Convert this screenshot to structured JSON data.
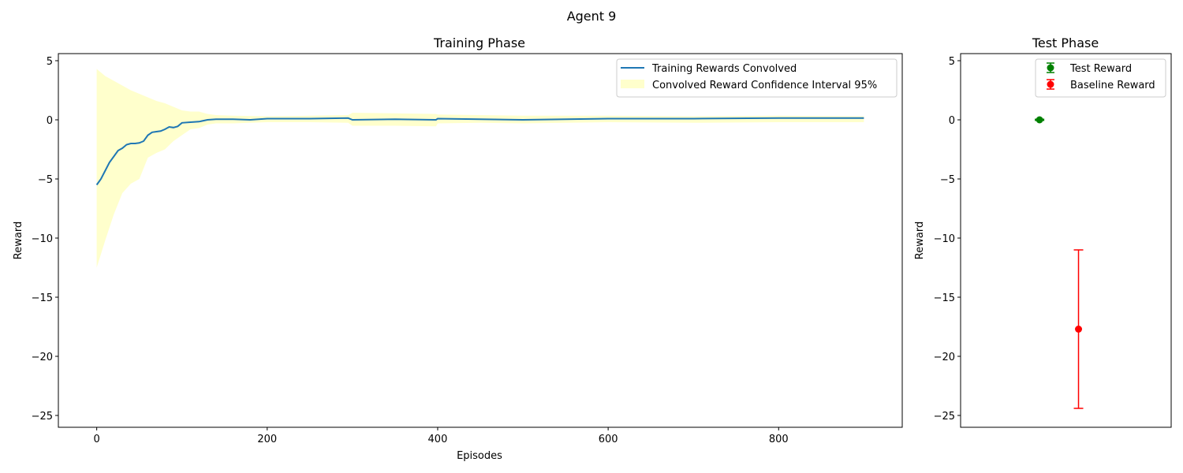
{
  "figure_title": "Agent 9",
  "chart_data": [
    {
      "type": "line",
      "title": "Training Phase",
      "xlabel": "Episodes",
      "ylabel": "Reward",
      "xlim": [
        -45,
        945
      ],
      "ylim": [
        -26,
        5.6
      ],
      "xticks": [
        "0",
        "200",
        "400",
        "600",
        "800"
      ],
      "yticks": [
        "5",
        "0",
        "−5",
        "−10",
        "−15",
        "−20",
        "−25"
      ],
      "legend_position": "upper right",
      "grid": false,
      "series": [
        {
          "name": "Training Rewards Convolved",
          "color": "#1f77b4",
          "x": [
            0,
            5,
            10,
            15,
            20,
            25,
            30,
            35,
            40,
            45,
            50,
            55,
            60,
            65,
            70,
            75,
            80,
            85,
            90,
            95,
            100,
            110,
            120,
            130,
            140,
            160,
            180,
            200,
            250,
            295,
            300,
            350,
            398,
            400,
            450,
            500,
            550,
            600,
            700,
            800,
            900
          ],
          "y": [
            -5.5,
            -5.0,
            -4.3,
            -3.6,
            -3.1,
            -2.6,
            -2.4,
            -2.1,
            -2.0,
            -2.0,
            -1.95,
            -1.8,
            -1.3,
            -1.05,
            -1.0,
            -0.95,
            -0.8,
            -0.6,
            -0.65,
            -0.55,
            -0.25,
            -0.2,
            -0.15,
            0.0,
            0.05,
            0.05,
            0.0,
            0.1,
            0.1,
            0.15,
            0.0,
            0.05,
            0.0,
            0.1,
            0.05,
            0.0,
            0.05,
            0.1,
            0.1,
            0.15,
            0.15
          ]
        },
        {
          "name": "Convolved Reward Confidence Interval 95%",
          "type": "band",
          "color": "#ffffcc",
          "x": [
            0,
            10,
            20,
            30,
            40,
            50,
            60,
            70,
            80,
            90,
            100,
            110,
            120,
            130,
            140,
            160,
            200,
            250,
            295,
            300,
            350,
            398,
            400,
            450,
            500,
            600,
            700,
            800,
            900
          ],
          "upper": [
            4.3,
            3.7,
            3.3,
            2.9,
            2.5,
            2.2,
            1.9,
            1.6,
            1.4,
            1.1,
            0.8,
            0.7,
            0.7,
            0.5,
            0.4,
            0.35,
            0.3,
            0.35,
            0.4,
            0.6,
            0.55,
            0.5,
            0.45,
            0.4,
            0.35,
            0.35,
            0.3,
            0.35,
            0.3
          ],
          "lower": [
            -12.5,
            -10.2,
            -8.0,
            -6.2,
            -5.4,
            -5.0,
            -3.2,
            -2.8,
            -2.5,
            -1.8,
            -1.3,
            -0.8,
            -0.7,
            -0.4,
            -0.3,
            -0.3,
            -0.2,
            -0.2,
            -0.25,
            -0.5,
            -0.5,
            -0.55,
            -0.3,
            -0.25,
            -0.3,
            -0.2,
            -0.25,
            -0.2,
            -0.2
          ]
        }
      ]
    },
    {
      "type": "scatter",
      "title": "Test Phase",
      "ylabel": "Reward",
      "xlim": [
        -0.5,
        1.5
      ],
      "ylim": [
        -26,
        5.6
      ],
      "yticks": [
        "5",
        "0",
        "−5",
        "−10",
        "−15",
        "−20",
        "−25"
      ],
      "legend_position": "upper right",
      "series": [
        {
          "name": "Test Reward",
          "color": "#008000",
          "x": 0.25,
          "y": 0.0,
          "err": 0.05
        },
        {
          "name": "Baseline Reward",
          "color": "#ff0000",
          "x": 0.62,
          "y": -17.7,
          "err": 6.7
        }
      ]
    }
  ]
}
